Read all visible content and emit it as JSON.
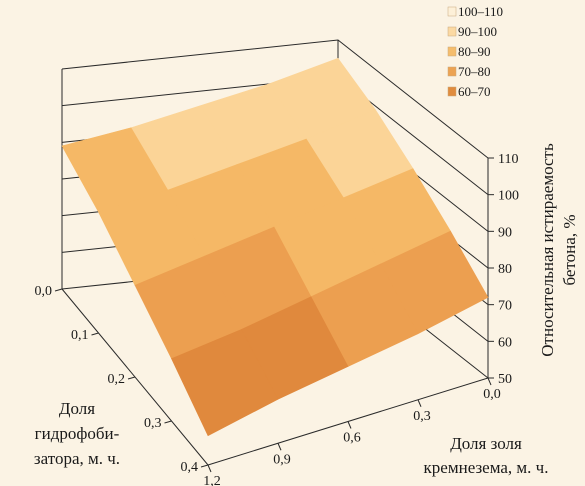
{
  "chart_data": {
    "type": "surface",
    "title": "",
    "x_axis": {
      "label_lines": [
        "Доля золя",
        "кремнезема, м. ч."
      ],
      "ticks": [
        "0,0",
        "0,3",
        "0,6",
        "0,9",
        "1,2"
      ],
      "values": [
        0.0,
        0.3,
        0.6,
        0.9,
        1.2
      ]
    },
    "y_axis": {
      "label_lines": [
        "Доля",
        "гидрофоби-",
        "затора, м. ч."
      ],
      "ticks": [
        "0,0",
        "0,1",
        "0,2",
        "0,3",
        "0,4"
      ],
      "values": [
        0.0,
        0.1,
        0.2,
        0.3,
        0.4
      ]
    },
    "z_axis": {
      "label_lines": [
        "Относительная истираемость",
        "бетона, %"
      ],
      "ticks": [
        "50",
        "60",
        "70",
        "80",
        "90",
        "100",
        "110"
      ],
      "range": [
        50,
        110
      ]
    },
    "surface_z": [
      [
        105,
        100,
        96,
        92,
        89
      ],
      [
        99,
        94,
        90,
        86,
        83
      ],
      [
        91,
        87,
        83,
        79,
        75
      ],
      [
        82,
        78,
        74,
        70,
        67
      ],
      [
        72,
        68,
        65,
        62,
        58
      ]
    ],
    "legend": {
      "position": "top-right",
      "entries": [
        {
          "label": "100–110",
          "color": "#fdf0d8"
        },
        {
          "label": "90–100",
          "color": "#fbd9a3"
        },
        {
          "label": "80–90",
          "color": "#f5bd6d"
        },
        {
          "label": "70–80",
          "color": "#eca353"
        },
        {
          "label": "60–70",
          "color": "#e08c3e"
        }
      ]
    },
    "grid": true
  }
}
